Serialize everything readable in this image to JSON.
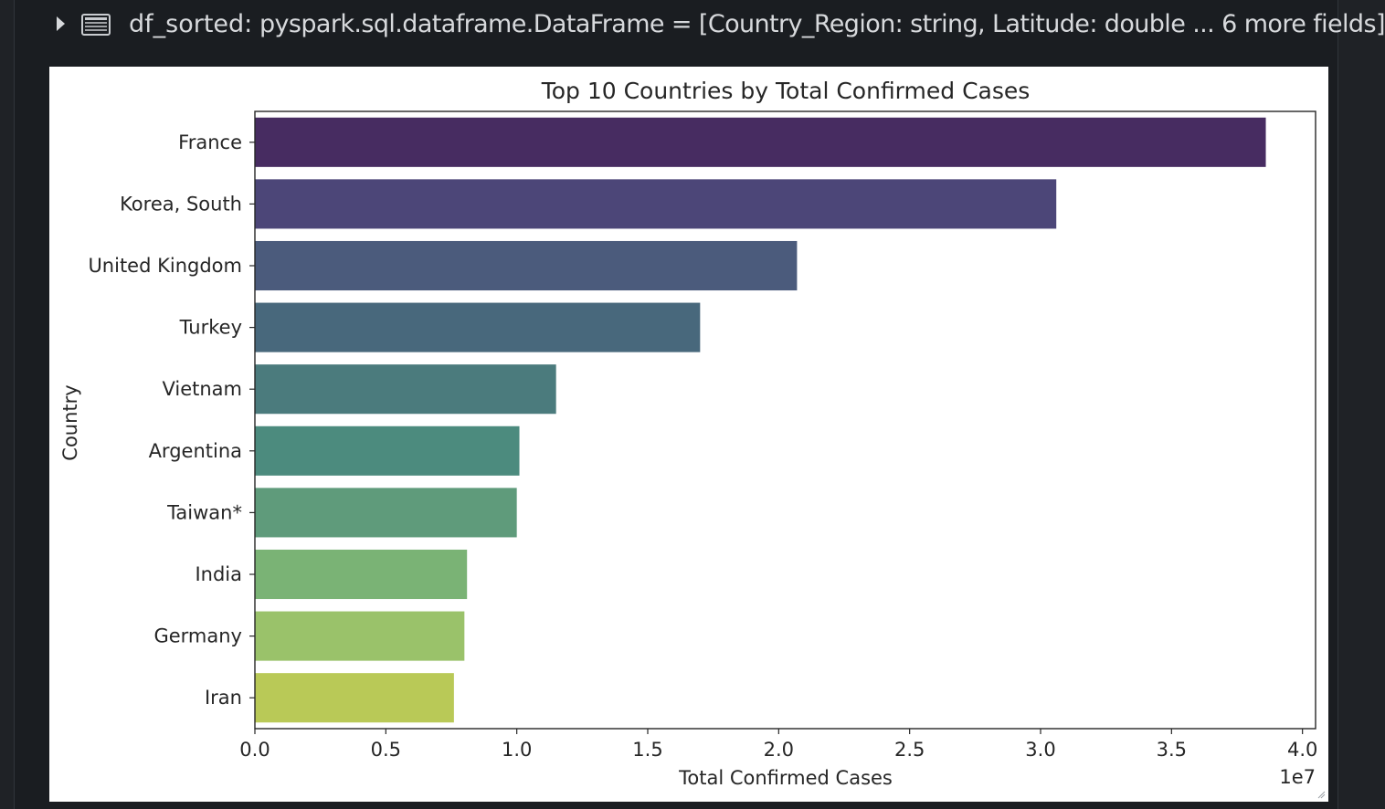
{
  "cell_header": {
    "variable_name": "df_sorted:",
    "variable_type": "pyspark.sql.dataframe.DataFrame = [Country_Region: string, Latitude: double ... 6 more fields]",
    "toggle_icon": "caret-right-icon",
    "table_icon": "table-icon"
  },
  "chart_data": {
    "type": "bar",
    "orientation": "horizontal",
    "title": "Top 10 Countries by Total Confirmed Cases",
    "xlabel": "Total Confirmed Cases",
    "ylabel": "Country",
    "x_scale_label": "1e7",
    "xlim": [
      0,
      4.05
    ],
    "x_ticks": [
      "0.0",
      "0.5",
      "1.0",
      "1.5",
      "2.0",
      "2.5",
      "3.0",
      "3.5",
      "4.0"
    ],
    "x_tick_values": [
      0,
      0.5,
      1.0,
      1.5,
      2.0,
      2.5,
      3.0,
      3.5,
      4.0
    ],
    "categories": [
      "France",
      "Korea, South",
      "United Kingdom",
      "Turkey",
      "Vietnam",
      "Argentina",
      "Taiwan*",
      "India",
      "Germany",
      "Iran"
    ],
    "values": [
      3.86,
      3.06,
      2.07,
      1.7,
      1.15,
      1.01,
      1.0,
      0.81,
      0.8,
      0.76
    ],
    "value_units": "1e7",
    "colors": [
      "#472c61",
      "#4c4678",
      "#4b5b7c",
      "#48687c",
      "#4b7b7d",
      "#4c8b7e",
      "#5f9b7b",
      "#7ab375",
      "#9ac26a",
      "#b9c957"
    ],
    "grid": false,
    "legend": "none"
  }
}
